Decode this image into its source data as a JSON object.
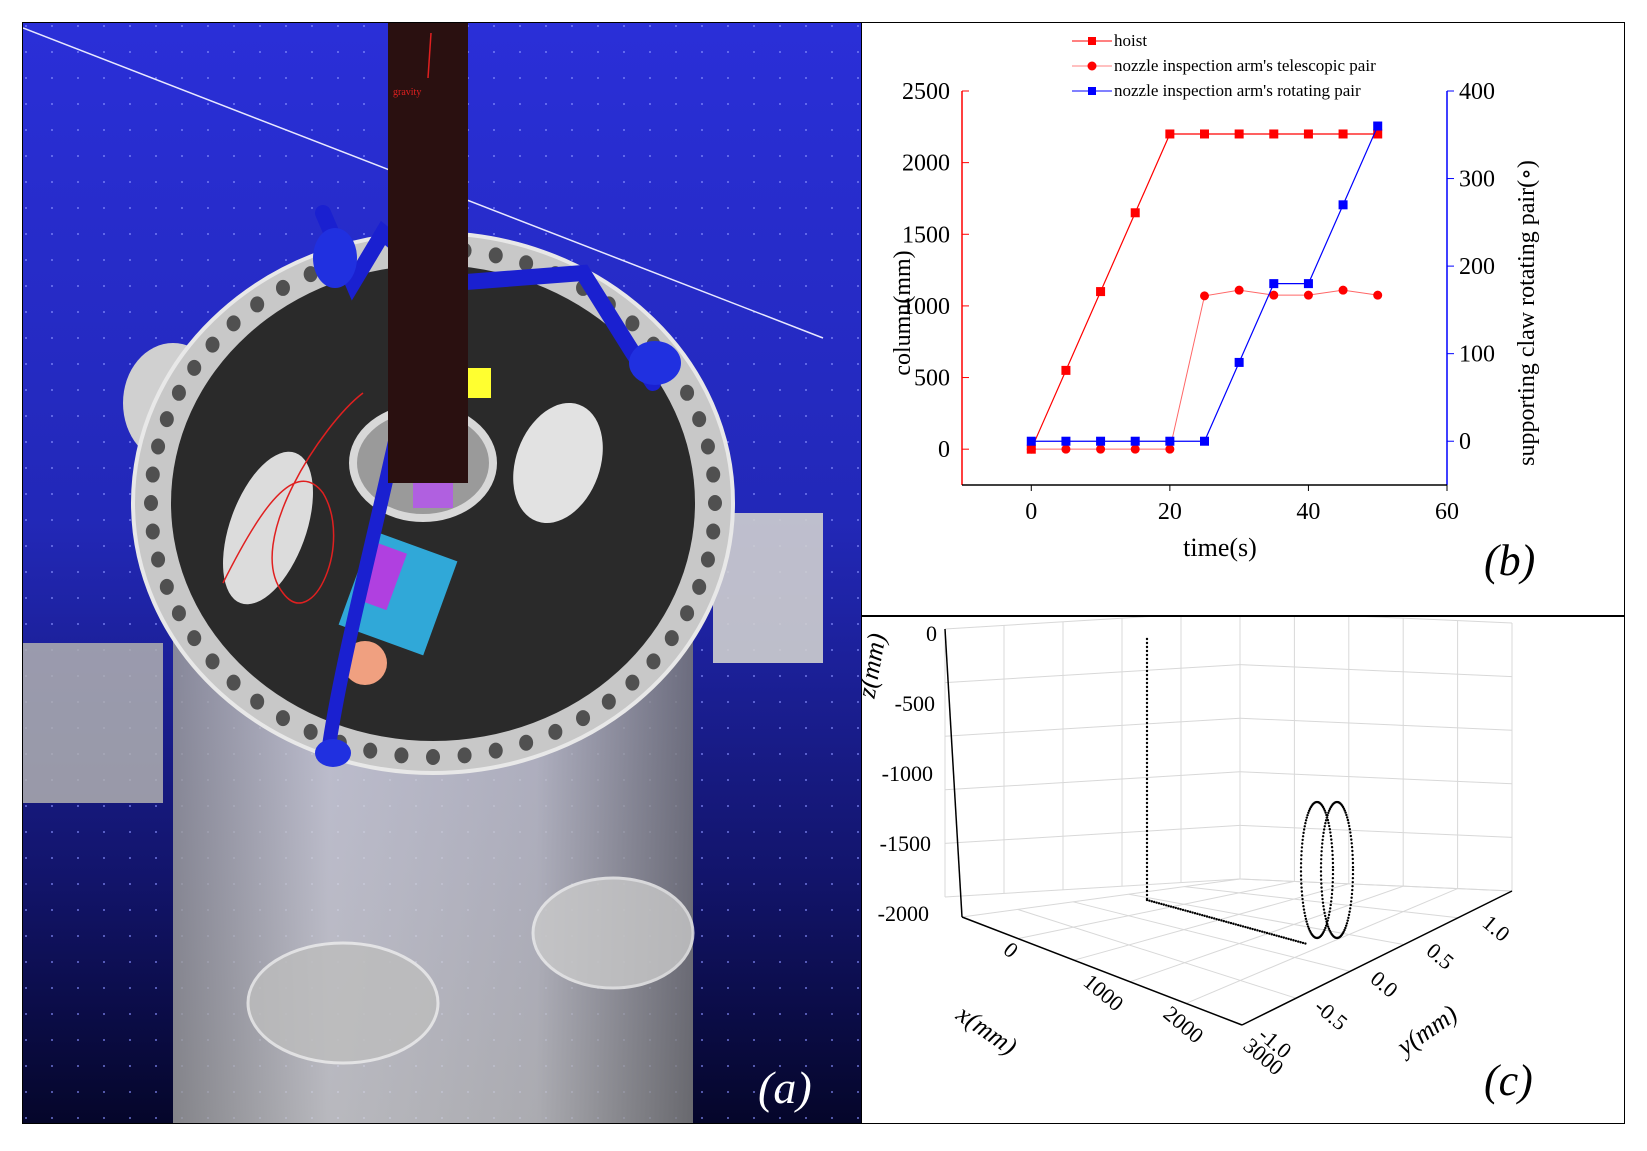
{
  "panel_labels": {
    "a": "(a)",
    "b": "(b)",
    "c": "(c)"
  },
  "scene": {
    "gravity_label": "gravity"
  },
  "colors": {
    "hoist": "#ff0000",
    "telescopic": "#ff0000",
    "rotating": "#0000ff"
  },
  "chart_data": [
    {
      "type": "line",
      "xlabel": "time(s)",
      "ylabel": "column(mm)",
      "y2label": "supporting claw rotating pair(∘)",
      "xlim": [
        -10,
        60
      ],
      "ylim": [
        -250,
        2500
      ],
      "y2lim": [
        -50,
        400
      ],
      "xticks": [
        "0",
        "20",
        "40",
        "60"
      ],
      "yticks": [
        "0",
        "500",
        "1000",
        "1500",
        "2000",
        "2500"
      ],
      "y2ticks": [
        "0",
        "100",
        "200",
        "300",
        "400"
      ],
      "legend_position": "top",
      "series": [
        {
          "name": "hoist",
          "axis": "left",
          "marker": "square",
          "color": "#ff0000",
          "x": [
            0,
            5,
            10,
            15,
            20,
            25,
            30,
            35,
            40,
            45,
            50
          ],
          "y": [
            0,
            550,
            1100,
            1650,
            2200,
            2200,
            2200,
            2200,
            2200,
            2200,
            2200
          ]
        },
        {
          "name": "nozzle inspection arm's telescopic pair",
          "axis": "left",
          "marker": "circle",
          "color": "#ff0000",
          "x": [
            0,
            5,
            10,
            15,
            20,
            25,
            30,
            35,
            40,
            45,
            50
          ],
          "y": [
            0,
            0,
            0,
            0,
            0,
            1070,
            1110,
            1075,
            1075,
            1110,
            1075
          ]
        },
        {
          "name": "nozzle inspection arm's rotating pair",
          "axis": "right",
          "marker": "square",
          "color": "#0000ff",
          "x": [
            0,
            5,
            10,
            15,
            20,
            25,
            30,
            35,
            40,
            45,
            50
          ],
          "y": [
            0,
            0,
            0,
            0,
            0,
            0,
            90,
            180,
            180,
            270,
            360
          ]
        }
      ]
    },
    {
      "type": "scatter",
      "xlabel": "x(mm)",
      "ylabel": "y(mm)",
      "zlabel": "z(mm)",
      "xticks": [
        "0",
        "1000",
        "2000",
        "3000"
      ],
      "yticks": [
        "-1.0",
        "-0.5",
        "0.0",
        "0.5",
        "1.0"
      ],
      "zticks": [
        "0",
        "-500",
        "-1000",
        "-1500",
        "-2000"
      ],
      "xlim": [
        0,
        3500
      ],
      "ylim": [
        -1.0,
        1.0
      ],
      "zlim": [
        -2200,
        0
      ],
      "grid": true,
      "series": [
        {
          "name": "",
          "segment": "vertical descent",
          "x": [
            0,
            0
          ],
          "y": [
            0,
            0
          ],
          "z": [
            -100,
            -2000
          ]
        },
        {
          "name": "",
          "segment": "horizontal travel",
          "x": [
            0,
            2400
          ],
          "y": [
            0,
            0
          ],
          "z": [
            -2000,
            -2000
          ]
        },
        {
          "name": "",
          "segment": "nozzle loops",
          "center_x": 2600,
          "center_z": -1730,
          "radius_z": 470,
          "radius_x": 180
        }
      ]
    }
  ]
}
